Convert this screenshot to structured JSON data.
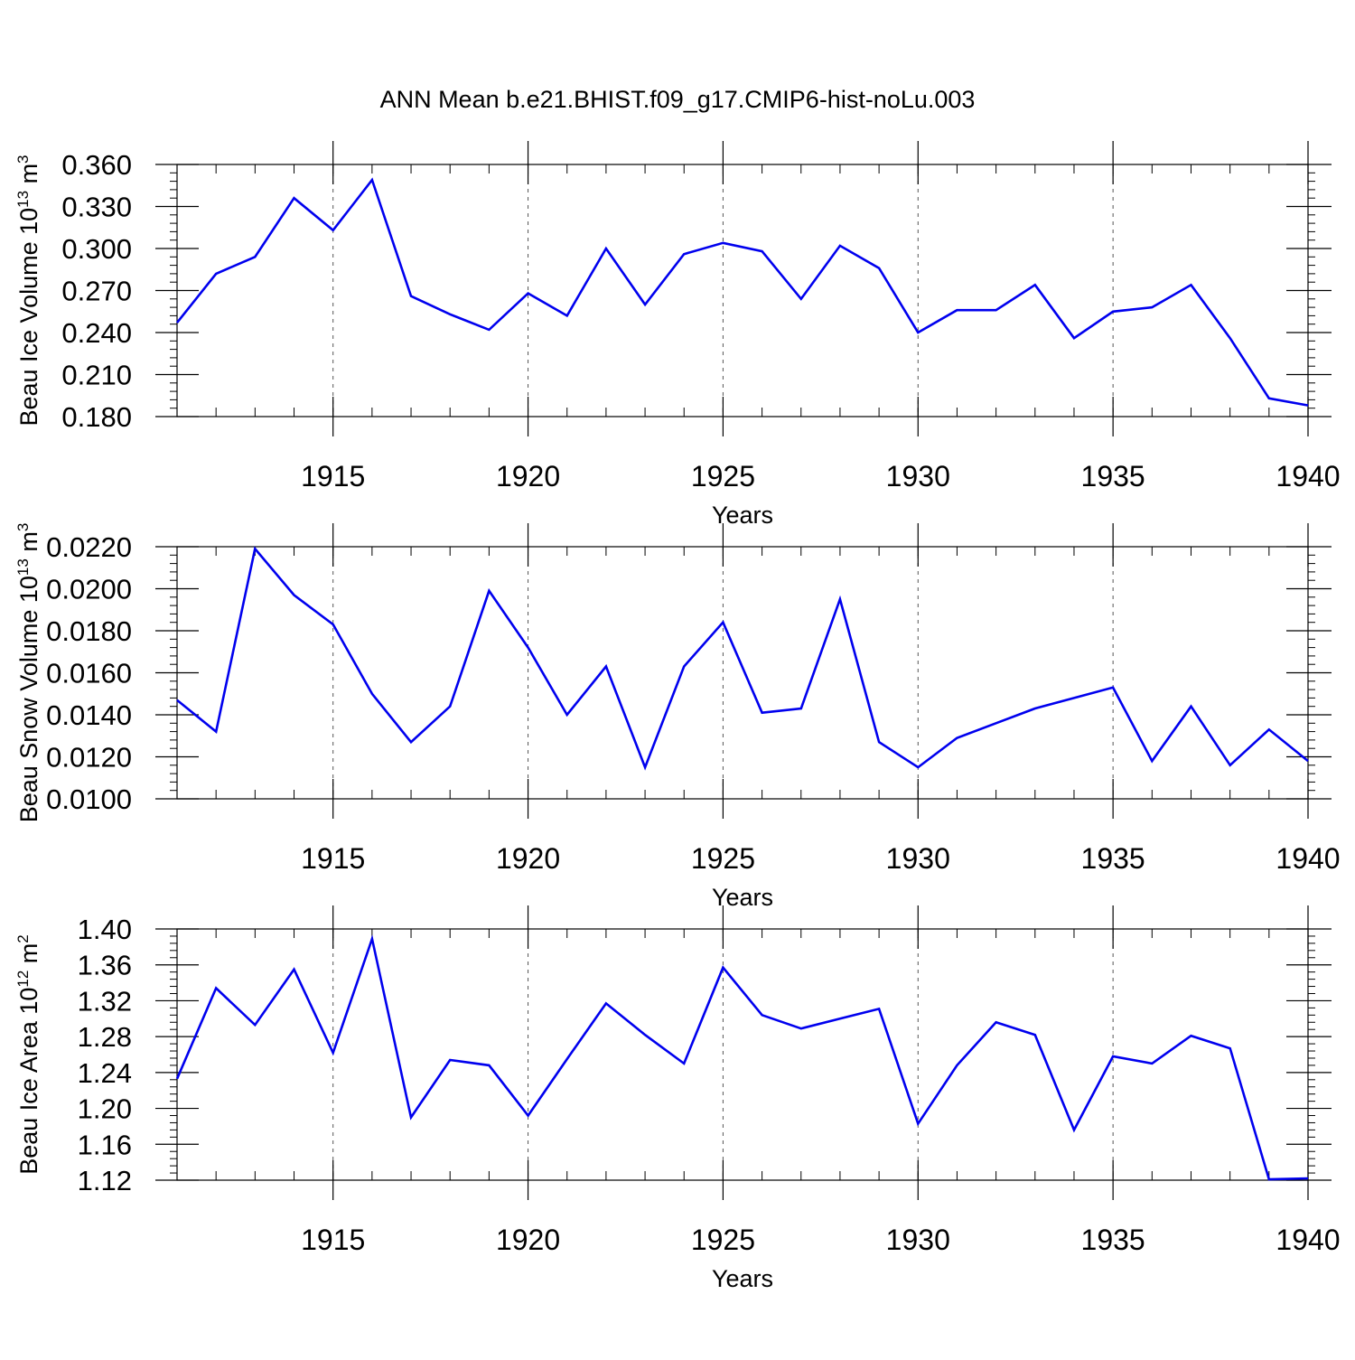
{
  "title": "ANN Mean b.e21.BHIST.f09_g17.CMIP6-hist-noLu.003",
  "chart_data": [
    {
      "type": "line",
      "ylabel": "Beau Ice Volume",
      "ylabel_unit_base": "10",
      "ylabel_unit_exp": "13",
      "ylabel_unit_tail": "m",
      "ylabel_unit_tail_exp": "3",
      "xlabel": "Years",
      "xlim": [
        1911,
        1940
      ],
      "ylim": [
        0.18,
        0.36
      ],
      "yticks": [
        0.18,
        0.21,
        0.24,
        0.27,
        0.3,
        0.33,
        0.36
      ],
      "ytick_labels": [
        "0.180",
        "0.210",
        "0.240",
        "0.270",
        "0.300",
        "0.330",
        "0.360"
      ],
      "xticks": [
        1915,
        1920,
        1925,
        1930,
        1935,
        1940
      ],
      "xtick_labels": [
        "1915",
        "1920",
        "1925",
        "1930",
        "1935",
        "1940"
      ],
      "line_color": "#0000ee",
      "x": [
        1911,
        1912,
        1913,
        1914,
        1915,
        1916,
        1917,
        1918,
        1919,
        1920,
        1921,
        1922,
        1923,
        1924,
        1925,
        1926,
        1927,
        1928,
        1929,
        1930,
        1931,
        1932,
        1933,
        1934,
        1935,
        1936,
        1937,
        1938,
        1939,
        1940
      ],
      "values": [
        0.247,
        0.282,
        0.294,
        0.336,
        0.313,
        0.349,
        0.266,
        0.253,
        0.242,
        0.268,
        0.252,
        0.3,
        0.26,
        0.296,
        0.304,
        0.298,
        0.264,
        0.302,
        0.286,
        0.24,
        0.256,
        0.256,
        0.274,
        0.236,
        0.255,
        0.258,
        0.274,
        0.236,
        0.193,
        0.188
      ]
    },
    {
      "type": "line",
      "ylabel": "Beau Snow Volume",
      "ylabel_unit_base": "10",
      "ylabel_unit_exp": "13",
      "ylabel_unit_tail": "m",
      "ylabel_unit_tail_exp": "3",
      "xlabel": "Years",
      "xlim": [
        1911,
        1940
      ],
      "ylim": [
        0.01,
        0.022
      ],
      "yticks": [
        0.01,
        0.012,
        0.014,
        0.016,
        0.018,
        0.02,
        0.022
      ],
      "ytick_labels": [
        "0.0100",
        "0.0120",
        "0.0140",
        "0.0160",
        "0.0180",
        "0.0200",
        "0.0220"
      ],
      "xticks": [
        1915,
        1920,
        1925,
        1930,
        1935,
        1940
      ],
      "xtick_labels": [
        "1915",
        "1920",
        "1925",
        "1930",
        "1935",
        "1940"
      ],
      "line_color": "#0000ee",
      "x": [
        1911,
        1912,
        1913,
        1914,
        1915,
        1916,
        1917,
        1918,
        1919,
        1920,
        1921,
        1922,
        1923,
        1924,
        1925,
        1926,
        1927,
        1928,
        1929,
        1930,
        1931,
        1932,
        1933,
        1934,
        1935,
        1936,
        1937,
        1938,
        1939,
        1940
      ],
      "values": [
        0.0147,
        0.0132,
        0.0219,
        0.0197,
        0.0183,
        0.015,
        0.0127,
        0.0144,
        0.0199,
        0.0172,
        0.014,
        0.0163,
        0.0115,
        0.0163,
        0.0184,
        0.0141,
        0.0143,
        0.0195,
        0.0127,
        0.0115,
        0.0129,
        0.0136,
        0.0143,
        0.0148,
        0.0153,
        0.0118,
        0.0144,
        0.0116,
        0.0133,
        0.0118
      ]
    },
    {
      "type": "line",
      "ylabel": "Beau Ice Area",
      "ylabel_unit_base": "10",
      "ylabel_unit_exp": "12",
      "ylabel_unit_tail": "m",
      "ylabel_unit_tail_exp": "2",
      "xlabel": "Years",
      "xlim": [
        1911,
        1940
      ],
      "ylim": [
        1.12,
        1.4
      ],
      "yticks": [
        1.12,
        1.16,
        1.2,
        1.24,
        1.28,
        1.32,
        1.36,
        1.4
      ],
      "ytick_labels": [
        "1.12",
        "1.16",
        "1.20",
        "1.24",
        "1.28",
        "1.32",
        "1.36",
        "1.40"
      ],
      "xticks": [
        1915,
        1920,
        1925,
        1930,
        1935,
        1940
      ],
      "xtick_labels": [
        "1915",
        "1920",
        "1925",
        "1930",
        "1935",
        "1940"
      ],
      "line_color": "#0000ee",
      "x": [
        1911,
        1912,
        1913,
        1914,
        1915,
        1916,
        1917,
        1918,
        1919,
        1920,
        1921,
        1922,
        1923,
        1924,
        1925,
        1926,
        1927,
        1928,
        1929,
        1930,
        1931,
        1932,
        1933,
        1934,
        1935,
        1936,
        1937,
        1938,
        1939,
        1940
      ],
      "values": [
        1.233,
        1.334,
        1.293,
        1.355,
        1.262,
        1.389,
        1.19,
        1.254,
        1.248,
        1.192,
        1.255,
        1.317,
        1.282,
        1.25,
        1.357,
        1.304,
        1.289,
        1.3,
        1.311,
        1.183,
        1.248,
        1.296,
        1.282,
        1.176,
        1.258,
        1.25,
        1.281,
        1.267,
        1.121,
        1.122
      ]
    }
  ]
}
